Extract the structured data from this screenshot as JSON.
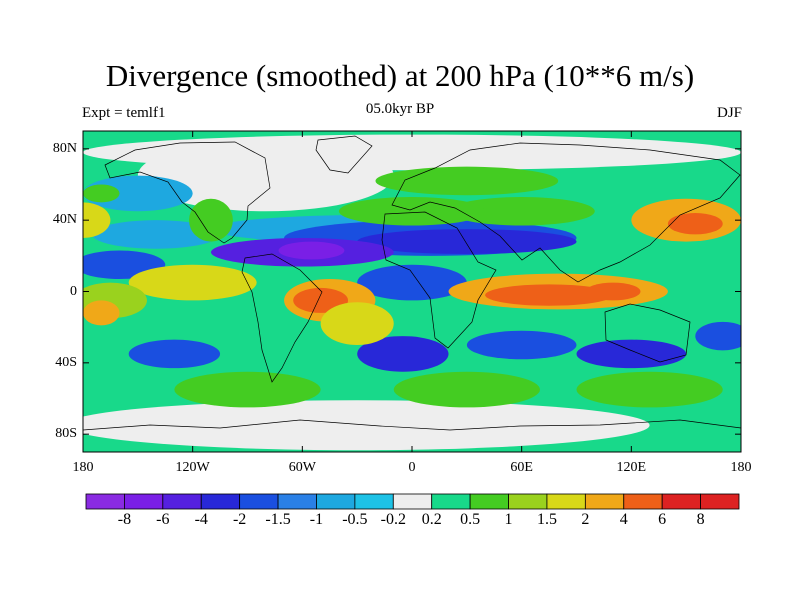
{
  "title": "Divergence (smoothed) at 200 hPa (10**6 m/s)",
  "subtitle_left": "Expt = temlf1",
  "subtitle_center": "05.0kyr BP",
  "subtitle_right": "DJF",
  "map": {
    "lon_range": [
      -180,
      180
    ],
    "lat_range": [
      -90,
      90
    ],
    "y_ticks": [
      {
        "lat": 80,
        "label": "80N"
      },
      {
        "lat": 40,
        "label": "40N"
      },
      {
        "lat": 0,
        "label": "0"
      },
      {
        "lat": -40,
        "label": "40S"
      },
      {
        "lat": -80,
        "label": "80S"
      }
    ],
    "x_ticks": [
      {
        "lon": -180,
        "label": "180"
      },
      {
        "lon": -120,
        "label": "120W"
      },
      {
        "lon": -60,
        "label": "60W"
      },
      {
        "lon": 0,
        "label": "0"
      },
      {
        "lon": 60,
        "label": "60E"
      },
      {
        "lon": 120,
        "label": "120E"
      },
      {
        "lon": 180,
        "label": "180"
      }
    ]
  },
  "colorbar": {
    "colors": [
      "#8a2be2",
      "#7a1fe6",
      "#5520e0",
      "#2828d8",
      "#1a4fe0",
      "#2a80e6",
      "#1ea8e0",
      "#1ec2e6",
      "#eeeeee",
      "#18d98a",
      "#44cc22",
      "#9ad21e",
      "#d8d818",
      "#f0a818",
      "#ee6018",
      "#dd2222"
    ],
    "labels": [
      "-8",
      "-6",
      "-4",
      "-2",
      "-1.5",
      "-1",
      "-0.5",
      "-0.2",
      "0.2",
      "0.5",
      "1",
      "1.5",
      "2",
      "4",
      "6",
      "8"
    ]
  },
  "field": {
    "background_class": 9,
    "blobs": [
      {
        "lon": -30,
        "lat": -75,
        "rlon": 160,
        "rlat": 14,
        "c": 8
      },
      {
        "lon": 0,
        "lat": 78,
        "rlon": 180,
        "rlat": 10,
        "c": 8
      },
      {
        "lon": -80,
        "lat": 65,
        "rlon": 70,
        "rlat": 20,
        "c": 8
      },
      {
        "lon": -150,
        "lat": 55,
        "rlon": 30,
        "rlat": 10,
        "c": 6
      },
      {
        "lon": -140,
        "lat": 32,
        "rlon": 35,
        "rlat": 8,
        "c": 6
      },
      {
        "lon": -20,
        "lat": 35,
        "rlon": 90,
        "rlat": 8,
        "c": 6
      },
      {
        "lon": 10,
        "lat": 30,
        "rlon": 80,
        "rlat": 10,
        "c": 4
      },
      {
        "lon": 30,
        "lat": 28,
        "rlon": 60,
        "rlat": 7,
        "c": 3
      },
      {
        "lon": -60,
        "lat": 22,
        "rlon": 50,
        "rlat": 8,
        "c": 2
      },
      {
        "lon": -55,
        "lat": 23,
        "rlon": 18,
        "rlat": 5,
        "c": 1
      },
      {
        "lon": -160,
        "lat": 15,
        "rlon": 25,
        "rlat": 8,
        "c": 4
      },
      {
        "lon": 0,
        "lat": 5,
        "rlon": 30,
        "rlat": 10,
        "c": 4
      },
      {
        "lon": -130,
        "lat": -35,
        "rlon": 25,
        "rlat": 8,
        "c": 4
      },
      {
        "lon": -5,
        "lat": -35,
        "rlon": 25,
        "rlat": 10,
        "c": 3
      },
      {
        "lon": 60,
        "lat": -30,
        "rlon": 30,
        "rlat": 8,
        "c": 4
      },
      {
        "lon": 120,
        "lat": -35,
        "rlon": 30,
        "rlat": 8,
        "c": 3
      },
      {
        "lon": 170,
        "lat": -25,
        "rlon": 15,
        "rlat": 8,
        "c": 4
      },
      {
        "lon": -170,
        "lat": 55,
        "rlon": 10,
        "rlat": 5,
        "c": 10
      },
      {
        "lon": -180,
        "lat": 40,
        "rlon": 15,
        "rlat": 10,
        "c": 12
      },
      {
        "lon": 150,
        "lat": 40,
        "rlon": 30,
        "rlat": 12,
        "c": 13
      },
      {
        "lon": 155,
        "lat": 38,
        "rlon": 15,
        "rlat": 6,
        "c": 14
      },
      {
        "lon": 30,
        "lat": 62,
        "rlon": 50,
        "rlat": 8,
        "c": 10
      },
      {
        "lon": -110,
        "lat": 40,
        "rlon": 12,
        "rlat": 12,
        "c": 10
      },
      {
        "lon": -120,
        "lat": 5,
        "rlon": 35,
        "rlat": 10,
        "c": 12
      },
      {
        "lon": 60,
        "lat": 45,
        "rlon": 40,
        "rlat": 8,
        "c": 10
      },
      {
        "lon": -165,
        "lat": -5,
        "rlon": 20,
        "rlat": 10,
        "c": 11
      },
      {
        "lon": -170,
        "lat": -12,
        "rlon": 10,
        "rlat": 7,
        "c": 13
      },
      {
        "lon": -45,
        "lat": -5,
        "rlon": 25,
        "rlat": 12,
        "c": 13
      },
      {
        "lon": -50,
        "lat": -5,
        "rlon": 15,
        "rlat": 7,
        "c": 14
      },
      {
        "lon": 80,
        "lat": 0,
        "rlon": 60,
        "rlat": 10,
        "c": 13
      },
      {
        "lon": 75,
        "lat": -2,
        "rlon": 35,
        "rlat": 6,
        "c": 14
      },
      {
        "lon": 110,
        "lat": 0,
        "rlon": 15,
        "rlat": 5,
        "c": 14
      },
      {
        "lon": -30,
        "lat": -18,
        "rlon": 20,
        "rlat": 12,
        "c": 12
      },
      {
        "lon": 0,
        "lat": 45,
        "rlon": 40,
        "rlat": 8,
        "c": 10
      },
      {
        "lon": 30,
        "lat": -55,
        "rlon": 40,
        "rlat": 10,
        "c": 10
      },
      {
        "lon": -90,
        "lat": -55,
        "rlon": 40,
        "rlat": 10,
        "c": 10
      },
      {
        "lon": 130,
        "lat": -55,
        "rlon": 40,
        "rlat": 10,
        "c": 10
      }
    ]
  }
}
